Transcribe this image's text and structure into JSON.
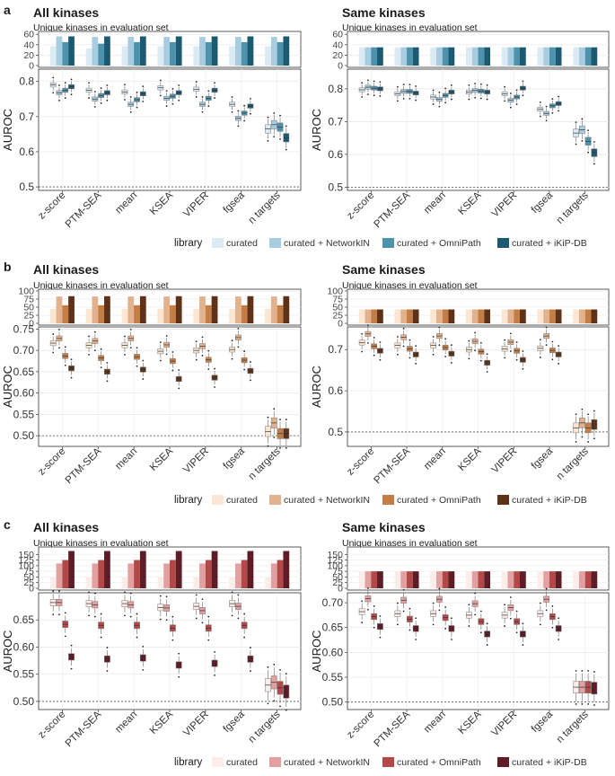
{
  "figure": {
    "library_label": "library",
    "ref_line": 0.5,
    "methods": [
      "z-score",
      "PTM-SEA",
      "mean",
      "KSEA",
      "VIPER",
      "fgsea",
      "n targets"
    ],
    "bar_subtitle": "Unique kinases in evaluation set",
    "y_label": "AUROC"
  },
  "chart_data": [
    {
      "id": "a-all",
      "panel_letter": "a",
      "type": "bar+boxplot",
      "title": "All kinases",
      "legend_title": "library",
      "series": [
        "curated",
        "curated + NetworkIN",
        "curated + OmniPath",
        "curated + iKiP-DB"
      ],
      "colors": [
        "#dcebf3",
        "#a8cde0",
        "#4e93ae",
        "#1d5a72"
      ],
      "bar_yticks": [
        "0",
        "20",
        "40",
        "60"
      ],
      "bar_ylim": [
        0,
        62
      ],
      "bar_values": [
        [
          37,
          56,
          45,
          56
        ],
        [
          33,
          55,
          42,
          56
        ],
        [
          37,
          55,
          45,
          56
        ],
        [
          37,
          55,
          45,
          56
        ],
        [
          37,
          55,
          45,
          56
        ],
        [
          37,
          55,
          45,
          56
        ],
        [
          37,
          55,
          45,
          56
        ]
      ],
      "box_yticks": [
        "0.5",
        "0.6",
        "0.7",
        "0.8"
      ],
      "box_ylim": [
        0.49,
        0.835
      ],
      "box_medians": [
        [
          0.79,
          0.768,
          0.775,
          0.785
        ],
        [
          0.775,
          0.75,
          0.76,
          0.768
        ],
        [
          0.77,
          0.735,
          0.748,
          0.765
        ],
        [
          0.782,
          0.752,
          0.758,
          0.768
        ],
        [
          0.778,
          0.735,
          0.752,
          0.775
        ],
        [
          0.735,
          0.695,
          0.71,
          0.73
        ],
        [
          0.665,
          0.677,
          0.67,
          0.64
        ]
      ]
    },
    {
      "id": "a-same",
      "panel_letter": "",
      "type": "bar+boxplot",
      "title": "Same kinases",
      "series": [
        "curated",
        "curated + NetworkIN",
        "curated + OmniPath",
        "curated + iKiP-DB"
      ],
      "colors": [
        "#dcebf3",
        "#a8cde0",
        "#4e93ae",
        "#1d5a72"
      ],
      "bar_yticks": [
        "0",
        "20",
        "40",
        "60"
      ],
      "bar_ylim": [
        0,
        62
      ],
      "bar_values": [
        [
          35,
          35,
          35,
          35
        ],
        [
          35,
          35,
          35,
          35
        ],
        [
          35,
          35,
          35,
          35
        ],
        [
          35,
          35,
          35,
          35
        ],
        [
          35,
          35,
          35,
          35
        ],
        [
          35,
          35,
          35,
          35
        ],
        [
          35,
          35,
          35,
          35
        ]
      ],
      "box_yticks": [
        "0.5",
        "0.6",
        "0.7",
        "0.8"
      ],
      "box_ylim": [
        0.49,
        0.86
      ],
      "box_medians": [
        [
          0.797,
          0.805,
          0.802,
          0.8
        ],
        [
          0.785,
          0.792,
          0.792,
          0.787
        ],
        [
          0.775,
          0.768,
          0.78,
          0.79
        ],
        [
          0.79,
          0.795,
          0.793,
          0.79
        ],
        [
          0.785,
          0.765,
          0.775,
          0.802
        ],
        [
          0.738,
          0.725,
          0.748,
          0.755
        ],
        [
          0.665,
          0.675,
          0.64,
          0.605
        ]
      ]
    },
    {
      "id": "b-all",
      "panel_letter": "b",
      "type": "bar+boxplot",
      "title": "All kinases",
      "legend_title": "library",
      "series": [
        "curated",
        "curated + NetworkIN",
        "curated + OmniPath",
        "curated + iKiP-DB"
      ],
      "colors": [
        "#fbe6d4",
        "#e2b18d",
        "#c47e45",
        "#5e3218"
      ],
      "bar_yticks": [
        "0",
        "25",
        "50",
        "75",
        "100"
      ],
      "bar_ylim": [
        0,
        100
      ],
      "bar_values": [
        [
          45,
          83,
          56,
          84
        ],
        [
          45,
          83,
          56,
          84
        ],
        [
          45,
          83,
          56,
          84
        ],
        [
          45,
          83,
          56,
          84
        ],
        [
          45,
          83,
          56,
          84
        ],
        [
          45,
          83,
          56,
          84
        ],
        [
          45,
          83,
          56,
          84
        ]
      ],
      "box_yticks": [
        "0.50",
        "0.55",
        "0.60",
        "0.65",
        "0.70",
        "0.75"
      ],
      "box_ylim": [
        0.475,
        0.755
      ],
      "box_medians": [
        [
          0.717,
          0.728,
          0.687,
          0.658
        ],
        [
          0.712,
          0.722,
          0.682,
          0.65
        ],
        [
          0.712,
          0.728,
          0.685,
          0.655
        ],
        [
          0.698,
          0.713,
          0.675,
          0.633
        ],
        [
          0.7,
          0.71,
          0.678,
          0.636
        ],
        [
          0.702,
          0.73,
          0.677,
          0.652
        ],
        [
          0.51,
          0.53,
          0.505,
          0.505
        ]
      ]
    },
    {
      "id": "b-same",
      "panel_letter": "",
      "type": "bar+boxplot",
      "title": "Same kinases",
      "series": [
        "curated",
        "curated + NetworkIN",
        "curated + OmniPath",
        "curated + iKiP-DB"
      ],
      "colors": [
        "#fbe6d4",
        "#e2b18d",
        "#c47e45",
        "#5e3218"
      ],
      "bar_yticks": [
        "0",
        "25",
        "50",
        "75",
        "100"
      ],
      "bar_ylim": [
        0,
        100
      ],
      "bar_values": [
        [
          43,
          43,
          43,
          43
        ],
        [
          43,
          43,
          43,
          43
        ],
        [
          43,
          43,
          43,
          43
        ],
        [
          43,
          43,
          43,
          43
        ],
        [
          43,
          43,
          43,
          43
        ],
        [
          43,
          43,
          43,
          43
        ],
        [
          43,
          43,
          43,
          43
        ]
      ],
      "box_yticks": [
        "0.5",
        "0.6",
        "0.7"
      ],
      "box_ylim": [
        0.465,
        0.755
      ],
      "box_medians": [
        [
          0.717,
          0.738,
          0.708,
          0.697
        ],
        [
          0.71,
          0.73,
          0.702,
          0.688
        ],
        [
          0.71,
          0.733,
          0.705,
          0.69
        ],
        [
          0.7,
          0.72,
          0.695,
          0.668
        ],
        [
          0.702,
          0.718,
          0.697,
          0.675
        ],
        [
          0.703,
          0.733,
          0.698,
          0.688
        ],
        [
          0.51,
          0.522,
          0.51,
          0.518
        ]
      ]
    },
    {
      "id": "c-all",
      "panel_letter": "c",
      "type": "bar+boxplot",
      "title": "All kinases",
      "legend_title": "library",
      "series": [
        "curated",
        "curated + NetworkIN",
        "curated + OmniPath",
        "curated + iKiP-DB"
      ],
      "colors": [
        "#fcecea",
        "#e2a0a0",
        "#b24848",
        "#5c1d26"
      ],
      "bar_yticks": [
        "0",
        "25",
        "50",
        "75",
        "100",
        "125",
        "150"
      ],
      "bar_ylim": [
        0,
        175
      ],
      "bar_values": [
        [
          50,
          110,
          125,
          165
        ],
        [
          50,
          110,
          125,
          165
        ],
        [
          50,
          110,
          125,
          165
        ],
        [
          50,
          110,
          125,
          165
        ],
        [
          50,
          110,
          125,
          165
        ],
        [
          50,
          110,
          125,
          165
        ],
        [
          50,
          110,
          125,
          165
        ]
      ],
      "box_yticks": [
        "0.50",
        "0.55",
        "0.60",
        "0.65"
      ],
      "box_ylim": [
        0.485,
        0.7
      ],
      "box_medians": [
        [
          0.682,
          0.682,
          0.642,
          0.582
        ],
        [
          0.68,
          0.678,
          0.64,
          0.578
        ],
        [
          0.68,
          0.678,
          0.64,
          0.58
        ],
        [
          0.673,
          0.672,
          0.635,
          0.567
        ],
        [
          0.675,
          0.667,
          0.635,
          0.57
        ],
        [
          0.68,
          0.675,
          0.64,
          0.578
        ],
        [
          0.53,
          0.535,
          0.525,
          0.518
        ]
      ]
    },
    {
      "id": "c-same",
      "panel_letter": "",
      "type": "bar+boxplot",
      "title": "Same kinases",
      "series": [
        "curated",
        "curated + NetworkIN",
        "curated + OmniPath",
        "curated + iKiP-DB"
      ],
      "colors": [
        "#fcecea",
        "#e2a0a0",
        "#b24848",
        "#5c1d26"
      ],
      "bar_yticks": [
        "0",
        "25",
        "50",
        "75",
        "100",
        "125",
        "150"
      ],
      "bar_ylim": [
        0,
        175
      ],
      "bar_values": [
        [
          75,
          75,
          75,
          75
        ],
        [
          75,
          75,
          75,
          75
        ],
        [
          75,
          75,
          75,
          75
        ],
        [
          75,
          75,
          75,
          75
        ],
        [
          75,
          75,
          75,
          75
        ],
        [
          75,
          75,
          75,
          75
        ],
        [
          75,
          75,
          75,
          75
        ]
      ],
      "box_yticks": [
        "0.50",
        "0.55",
        "0.60",
        "0.65",
        "0.70"
      ],
      "box_ylim": [
        0.485,
        0.72
      ],
      "box_medians": [
        [
          0.682,
          0.708,
          0.672,
          0.652
        ],
        [
          0.678,
          0.705,
          0.667,
          0.648
        ],
        [
          0.678,
          0.707,
          0.67,
          0.648
        ],
        [
          0.675,
          0.698,
          0.662,
          0.637
        ],
        [
          0.675,
          0.69,
          0.662,
          0.637
        ],
        [
          0.678,
          0.707,
          0.672,
          0.648
        ],
        [
          0.53,
          0.53,
          0.53,
          0.528
        ]
      ]
    }
  ]
}
